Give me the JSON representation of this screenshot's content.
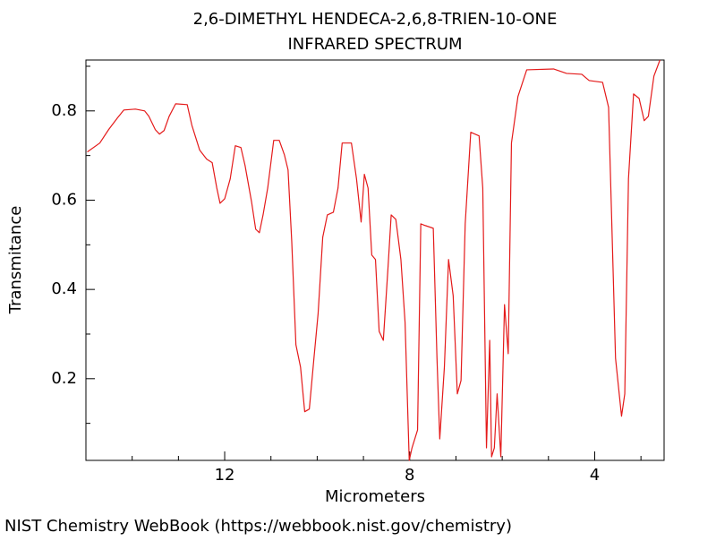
{
  "chart_data": {
    "type": "line",
    "title": "2,6-DIMETHYL HENDECA-2,6,8-TRIEN-10-ONE",
    "subtitle": "INFRARED SPECTRUM",
    "x_label": "Micrometers",
    "y_label": "Transmitance",
    "footer": "NIST Chemistry WebBook (https://webbook.nist.gov/chemistry)",
    "xlim": [
      15,
      2.5
    ],
    "ylim": [
      0.017,
      0.914
    ],
    "xticks": [
      12,
      8,
      4
    ],
    "yticks": [
      0.2,
      0.4,
      0.6,
      0.8
    ],
    "xminorticks": [
      14,
      13,
      11,
      10,
      9,
      7,
      6,
      5,
      3
    ],
    "yminorticks": [
      0.1,
      0.3,
      0.5,
      0.7,
      0.9
    ],
    "x": [
      14.97,
      14.7,
      14.51,
      14.32,
      14.18,
      13.93,
      13.73,
      13.64,
      13.5,
      13.41,
      13.31,
      13.2,
      13.06,
      12.81,
      12.71,
      12.54,
      12.39,
      12.27,
      12.17,
      12.1,
      12.0,
      11.88,
      11.77,
      11.65,
      11.56,
      11.42,
      11.33,
      11.25,
      11.17,
      11.07,
      10.94,
      10.82,
      10.71,
      10.63,
      10.55,
      10.46,
      10.36,
      10.27,
      10.17,
      10.07,
      9.98,
      9.88,
      9.78,
      9.65,
      9.55,
      9.46,
      9.26,
      9.15,
      9.05,
      8.98,
      8.9,
      8.82,
      8.74,
      8.66,
      8.57,
      8.47,
      8.4,
      8.3,
      8.19,
      8.1,
      8.01,
      7.95,
      7.83,
      7.76,
      7.66,
      7.49,
      7.41,
      7.35,
      7.25,
      7.16,
      7.06,
      6.97,
      6.89,
      6.8,
      6.68,
      6.5,
      6.42,
      6.34,
      6.27,
      6.23,
      6.17,
      6.11,
      6.03,
      5.95,
      5.87,
      5.8,
      5.66,
      5.47,
      4.89,
      4.61,
      4.28,
      4.12,
      3.83,
      3.7,
      3.55,
      3.42,
      3.35,
      3.27,
      3.16,
      3.04,
      2.93,
      2.84,
      2.72,
      2.59
    ],
    "series": [
      {
        "name": "Transmitance",
        "color": "#e41a1a",
        "values": [
          0.708,
          0.728,
          0.758,
          0.784,
          0.802,
          0.804,
          0.8,
          0.788,
          0.758,
          0.748,
          0.756,
          0.788,
          0.816,
          0.814,
          0.768,
          0.712,
          0.692,
          0.684,
          0.627,
          0.593,
          0.603,
          0.648,
          0.722,
          0.718,
          0.678,
          0.597,
          0.535,
          0.527,
          0.567,
          0.627,
          0.734,
          0.734,
          0.702,
          0.668,
          0.507,
          0.276,
          0.226,
          0.126,
          0.132,
          0.246,
          0.346,
          0.517,
          0.567,
          0.573,
          0.627,
          0.728,
          0.728,
          0.648,
          0.551,
          0.658,
          0.627,
          0.477,
          0.467,
          0.306,
          0.286,
          0.447,
          0.567,
          0.557,
          0.467,
          0.326,
          0.017,
          0.045,
          0.085,
          0.547,
          0.543,
          0.537,
          0.246,
          0.065,
          0.226,
          0.467,
          0.386,
          0.166,
          0.196,
          0.547,
          0.752,
          0.744,
          0.627,
          0.045,
          0.286,
          0.025,
          0.045,
          0.166,
          0.025,
          0.366,
          0.256,
          0.728,
          0.832,
          0.892,
          0.894,
          0.884,
          0.882,
          0.868,
          0.864,
          0.808,
          0.246,
          0.116,
          0.166,
          0.648,
          0.838,
          0.828,
          0.778,
          0.788,
          0.878,
          0.914
        ]
      }
    ]
  }
}
